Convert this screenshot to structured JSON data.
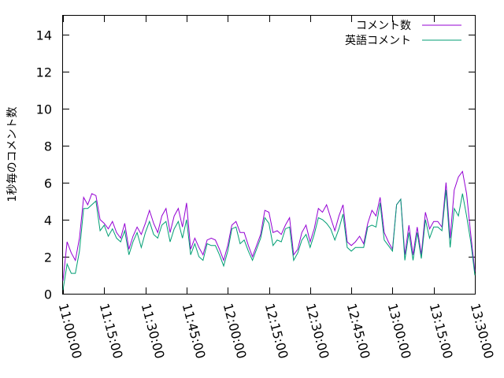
{
  "chart_data": {
    "type": "line",
    "title": "",
    "xlabel": "",
    "ylabel": "1秒毎のコメント数",
    "ylim": [
      0,
      15
    ],
    "yticks": [
      0,
      2,
      4,
      6,
      8,
      10,
      12,
      14
    ],
    "xlim": [
      "11:00:00",
      "13:30:00"
    ],
    "xticks": [
      "11:00:00",
      "11:15:00",
      "11:30:00",
      "11:45:00",
      "12:00:00",
      "12:15:00",
      "12:30:00",
      "12:45:00",
      "13:00:00",
      "13:15:00",
      "13:30:00"
    ],
    "grid": false,
    "legend_position": "top-right",
    "x": [
      "11:00:00",
      "11:01:30",
      "11:03:00",
      "11:04:30",
      "11:06:00",
      "11:07:30",
      "11:09:00",
      "11:10:30",
      "11:12:00",
      "11:13:30",
      "11:15:00",
      "11:16:30",
      "11:18:00",
      "11:19:30",
      "11:21:00",
      "11:22:30",
      "11:24:00",
      "11:25:30",
      "11:27:00",
      "11:28:30",
      "11:30:00",
      "11:31:30",
      "11:33:00",
      "11:34:30",
      "11:36:00",
      "11:37:30",
      "11:39:00",
      "11:40:30",
      "11:42:00",
      "11:43:30",
      "11:45:00",
      "11:46:30",
      "11:48:00",
      "11:49:30",
      "11:51:00",
      "11:52:30",
      "11:54:00",
      "11:55:30",
      "11:57:00",
      "11:58:30",
      "12:00:00",
      "12:01:30",
      "12:03:00",
      "12:04:30",
      "12:06:00",
      "12:07:30",
      "12:09:00",
      "12:10:30",
      "12:12:00",
      "12:13:30",
      "12:15:00",
      "12:16:30",
      "12:18:00",
      "12:19:30",
      "12:21:00",
      "12:22:30",
      "12:24:00",
      "12:25:30",
      "12:27:00",
      "12:28:30",
      "12:30:00",
      "12:31:30",
      "12:33:00",
      "12:34:30",
      "12:36:00",
      "12:37:30",
      "12:39:00",
      "12:40:30",
      "12:42:00",
      "12:43:30",
      "12:45:00",
      "12:46:30",
      "12:48:00",
      "12:49:30",
      "12:51:00",
      "12:52:30",
      "12:54:00",
      "12:55:30",
      "12:57:00",
      "12:58:30",
      "13:00:00",
      "13:01:30",
      "13:03:00",
      "13:04:30",
      "13:06:00",
      "13:07:30",
      "13:09:00",
      "13:10:30",
      "13:12:00",
      "13:13:30",
      "13:15:00",
      "13:16:30",
      "13:18:00",
      "13:19:30",
      "13:21:00",
      "13:22:30",
      "13:24:00",
      "13:25:30",
      "13:27:00",
      "13:28:30",
      "13:30:00"
    ],
    "series": [
      {
        "name": "コメント数",
        "color": "#9400d3",
        "values": [
          0.7,
          2.8,
          2.2,
          1.8,
          3.0,
          5.2,
          4.8,
          5.4,
          5.3,
          4.0,
          3.8,
          3.5,
          3.9,
          3.3,
          3.0,
          3.8,
          2.4,
          3.1,
          3.6,
          3.2,
          3.8,
          4.5,
          3.8,
          3.3,
          4.2,
          4.6,
          3.3,
          4.2,
          4.6,
          3.6,
          4.9,
          2.4,
          3.0,
          2.5,
          2.1,
          2.9,
          3.0,
          2.9,
          2.4,
          1.8,
          2.6,
          3.7,
          3.9,
          3.3,
          3.3,
          2.6,
          2.0,
          2.6,
          3.2,
          4.5,
          4.4,
          3.3,
          3.4,
          3.2,
          3.7,
          4.1,
          2.1,
          2.4,
          3.3,
          3.7,
          2.8,
          3.5,
          4.6,
          4.4,
          4.8,
          4.1,
          3.4,
          4.2,
          4.8,
          2.8,
          2.6,
          2.8,
          3.1,
          2.7,
          3.8,
          4.5,
          4.2,
          5.2,
          3.3,
          2.8,
          2.4,
          4.8,
          5.1,
          2.1,
          3.7,
          2.1,
          3.6,
          2.1,
          4.4,
          3.5,
          3.9,
          3.9,
          3.6,
          6.0,
          3.0,
          5.6,
          6.3,
          6.6,
          5.4,
          3.2,
          1.2
        ]
      },
      {
        "name": "英語コメント",
        "color": "#009e73",
        "values": [
          0.2,
          1.6,
          1.1,
          1.1,
          2.3,
          4.6,
          4.6,
          4.8,
          5.0,
          3.4,
          3.7,
          3.1,
          3.5,
          3.0,
          2.8,
          3.4,
          2.1,
          2.8,
          3.3,
          2.5,
          3.3,
          3.9,
          3.2,
          3.0,
          3.7,
          3.9,
          2.8,
          3.5,
          3.9,
          3.0,
          4.0,
          2.1,
          2.7,
          2.0,
          1.8,
          2.7,
          2.6,
          2.6,
          2.1,
          1.5,
          2.3,
          3.5,
          3.6,
          2.7,
          2.9,
          2.3,
          1.8,
          2.4,
          3.0,
          4.1,
          3.8,
          2.6,
          2.9,
          2.8,
          3.5,
          3.6,
          1.8,
          2.2,
          2.9,
          3.2,
          2.5,
          3.2,
          4.1,
          4.0,
          3.8,
          3.5,
          2.9,
          3.5,
          4.3,
          2.5,
          2.3,
          2.5,
          2.5,
          2.5,
          3.6,
          3.7,
          3.6,
          4.9,
          2.9,
          2.6,
          2.3,
          4.8,
          5.1,
          1.8,
          3.3,
          1.8,
          3.3,
          1.9,
          4.0,
          3.0,
          3.6,
          3.6,
          3.4,
          5.6,
          2.5,
          4.6,
          4.2,
          5.4,
          4.2,
          2.8,
          1.0
        ]
      }
    ]
  }
}
